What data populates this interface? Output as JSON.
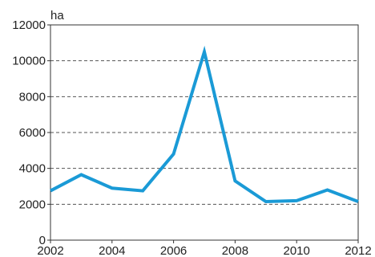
{
  "chart_data": {
    "type": "line",
    "unit_label": "ha",
    "x": [
      2002,
      2003,
      2004,
      2005,
      2006,
      2007,
      2008,
      2009,
      2010,
      2011,
      2012
    ],
    "series": [
      {
        "values": [
          2750,
          3650,
          2900,
          2750,
          4800,
          10500,
          3300,
          2150,
          2200,
          2800,
          2150
        ]
      }
    ],
    "xlim": [
      2002,
      2012
    ],
    "ylim": [
      0,
      12000
    ],
    "xticks": [
      "2002",
      "2004",
      "2006",
      "2008",
      "2010",
      "2012"
    ],
    "yticks": [
      "0",
      "2000",
      "4000",
      "6000",
      "8000",
      "10000",
      "12000"
    ],
    "grid": "horizontal-dashed",
    "colors": {
      "line": "#1a9ad6",
      "axis": "#333333",
      "grid": "#555555"
    }
  }
}
